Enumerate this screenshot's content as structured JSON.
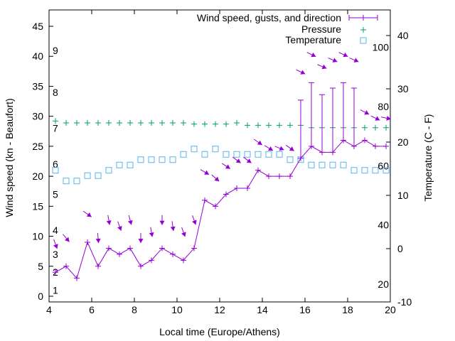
{
  "chart_data": {
    "type": "line",
    "xlabel": "Local time (Europe/Athens)",
    "ylabel": "Wind speed (kn - Beaufort)",
    "y2label": "Temperature (C - F)",
    "xlim": [
      4,
      20
    ],
    "ylim": [
      -1,
      46.5
    ],
    "y2lim": [
      -10,
      44.8
    ],
    "x_ticks": [
      4,
      6,
      8,
      10,
      12,
      14,
      16,
      18,
      20
    ],
    "y_ticks": [
      0,
      5,
      10,
      15,
      20,
      25,
      30,
      35,
      40,
      45
    ],
    "y2_ticks": [
      -10,
      0,
      10,
      20,
      30,
      40
    ],
    "beaufort_labels": [
      {
        "label": "1",
        "kn": 1
      },
      {
        "label": "2",
        "kn": 4
      },
      {
        "label": "3",
        "kn": 7
      },
      {
        "label": "4",
        "kn": 11
      },
      {
        "label": "5",
        "kn": 17
      },
      {
        "label": "6",
        "kn": 22
      },
      {
        "label": "7",
        "kn": 28
      },
      {
        "label": "8",
        "kn": 34
      },
      {
        "label": "9",
        "kn": 41
      }
    ],
    "fahrenheit_labels": [
      20,
      40,
      60,
      80,
      100
    ],
    "legend_position": "top-right",
    "colors": {
      "wind": "#9400d3",
      "pressure": "#009e73",
      "temperature": "#56b4e9"
    },
    "series": [
      {
        "name": "Wind speed, gusts, and direction",
        "key": "wind",
        "style": "linespoints+errorbars+arrows"
      },
      {
        "name": "Pressure",
        "key": "pressure",
        "style": "points"
      },
      {
        "name": "Temperature",
        "key": "temperature",
        "style": "squares"
      }
    ],
    "time": [
      4.3,
      4.8,
      5.3,
      5.8,
      6.3,
      6.8,
      7.3,
      7.8,
      8.3,
      8.8,
      9.3,
      9.8,
      10.3,
      10.8,
      11.3,
      11.8,
      12.3,
      12.8,
      13.3,
      13.8,
      14.3,
      14.8,
      15.3,
      15.8,
      16.3,
      16.8,
      17.3,
      17.8,
      18.3,
      18.8,
      19.3,
      19.8
    ],
    "wind_kn": [
      4,
      5,
      3,
      9,
      5,
      8,
      7,
      8,
      5,
      6,
      8,
      7,
      6,
      8,
      16,
      15,
      17,
      18,
      18,
      21,
      20,
      20,
      20,
      23,
      25,
      24,
      24,
      26,
      25,
      26,
      25,
      25
    ],
    "gust_kn": [
      null,
      null,
      null,
      null,
      null,
      null,
      null,
      null,
      null,
      null,
      null,
      null,
      null,
      null,
      null,
      null,
      null,
      null,
      null,
      null,
      null,
      null,
      null,
      32.7,
      35.6,
      33.6,
      34.7,
      35.6,
      34.7,
      null,
      null,
      null
    ],
    "direction_deg": [
      340,
      320,
      null,
      305,
      355,
      350,
      340,
      345,
      0,
      350,
      0,
      352,
      340,
      340,
      300,
      311,
      303,
      306,
      306,
      305,
      301,
      292,
      305,
      295,
      296,
      293,
      293,
      295,
      293,
      297,
      296,
      283
    ],
    "pressure_plot_units": [
      29.2,
      28.9,
      28.9,
      28.9,
      28.9,
      28.9,
      28.9,
      28.9,
      28.9,
      28.9,
      28.9,
      28.9,
      28.9,
      28.7,
      28.7,
      28.7,
      28.7,
      28.9,
      28.5,
      28.5,
      28.5,
      28.5,
      28.5,
      28.5,
      28.1,
      28.1,
      28.1,
      28.1,
      28.1,
      28.1,
      28.1,
      28.1
    ],
    "temperature_c": [
      14.7,
      12.7,
      12.7,
      13.7,
      13.7,
      14.7,
      15.7,
      15.7,
      16.7,
      16.7,
      16.7,
      16.7,
      17.7,
      18.7,
      17.7,
      18.7,
      17.7,
      17.7,
      17.7,
      17.7,
      17.7,
      17.7,
      16.7,
      16.7,
      15.7,
      15.7,
      15.7,
      15.7,
      14.7,
      14.7,
      14.7,
      14.7
    ]
  }
}
